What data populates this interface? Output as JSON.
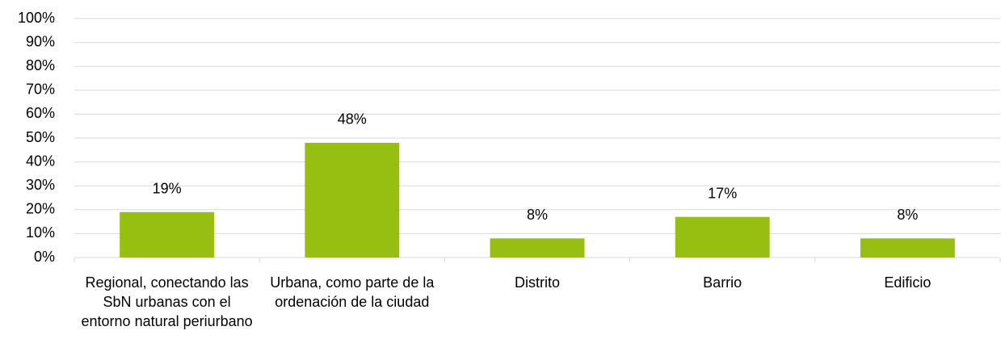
{
  "chart_data": {
    "type": "bar",
    "categories": [
      "Regional, conectando las SbN urbanas con el entorno natural periurbano",
      "Urbana, como parte de la ordenación de la ciudad",
      "Distrito",
      "Barrio",
      "Edificio"
    ],
    "values": [
      19,
      48,
      8,
      17,
      8
    ],
    "value_labels": [
      "19%",
      "48%",
      "8%",
      "17%",
      "8%"
    ],
    "color": "#97bf12",
    "ylim": [
      0,
      100
    ],
    "yticks": [
      {
        "value": 0,
        "label": "0%"
      },
      {
        "value": 10,
        "label": "10%"
      },
      {
        "value": 20,
        "label": "20%"
      },
      {
        "value": 30,
        "label": "30%"
      },
      {
        "value": 40,
        "label": "40%"
      },
      {
        "value": 50,
        "label": "50%"
      },
      {
        "value": 60,
        "label": "60%"
      },
      {
        "value": 70,
        "label": "70%"
      },
      {
        "value": 80,
        "label": "80%"
      },
      {
        "value": 90,
        "label": "90%"
      },
      {
        "value": 100,
        "label": "100%"
      }
    ],
    "grid": true
  }
}
